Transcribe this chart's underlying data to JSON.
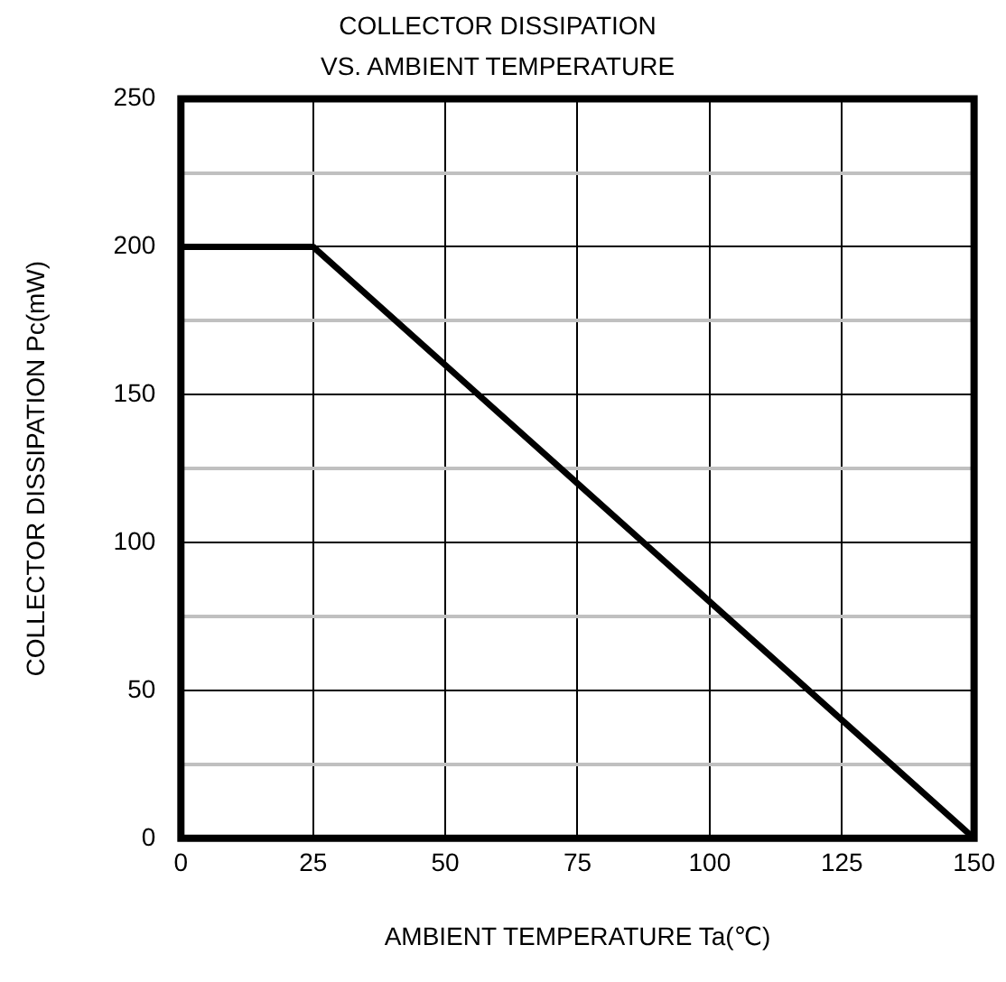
{
  "chart_data": {
    "type": "line",
    "title": "COLLECTOR DISSIPATION\nVS. AMBIENT TEMPERATURE",
    "xlabel": "AMBIENT TEMPERATURE Ta(℃)",
    "ylabel": "COLLECTOR DISSIPATION Pc(mW)",
    "x": [
      0,
      25,
      150
    ],
    "series": [
      {
        "color": "#000000",
        "values": [
          200,
          200,
          0
        ]
      }
    ],
    "xlim": [
      0,
      150
    ],
    "xticks": [
      0,
      25,
      50,
      75,
      100,
      125,
      150
    ],
    "ylim": [
      0,
      250
    ],
    "yticks": [
      0,
      {
        "value": 25,
        "label": null
      },
      50,
      {
        "value": 75,
        "label": null
      },
      100,
      {
        "value": 125,
        "label": null
      },
      150,
      {
        "value": 175,
        "label": null
      },
      200,
      {
        "value": 225,
        "label": null
      },
      250
    ],
    "grid": true,
    "legend": false,
    "marker": "none",
    "line_style": "solid"
  }
}
